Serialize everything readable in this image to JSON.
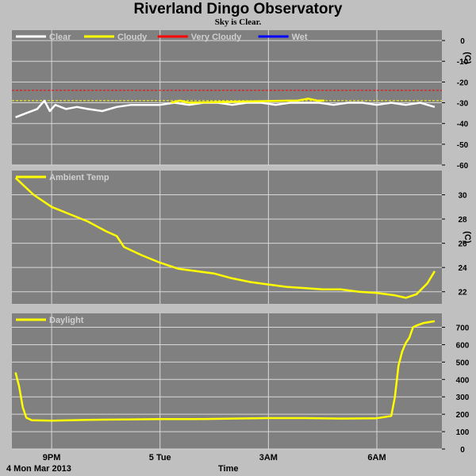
{
  "header": {
    "title": "Riverland Dingo Observatory",
    "subtitle": "Sky is Clear."
  },
  "footer": {
    "date_label": "4 Mon Mar 2013",
    "axis_label": "Time"
  },
  "colors": {
    "panel_bg": "#808080",
    "page_bg": "#c0c0c0",
    "grid": "#d8d8d8",
    "clear": "#ffffff",
    "cloudy": "#ffff00",
    "very_cloudy": "#ff0000",
    "wet": "#0000ff"
  },
  "chart_data": [
    {
      "type": "line",
      "ylabel": "(C)",
      "ylim": [
        -60,
        5
      ],
      "yticks": [
        0,
        -10,
        -20,
        -30,
        -40,
        -50,
        -60
      ],
      "xlim": [
        19.9,
        31.8
      ],
      "x_ticks": [
        {
          "x": 21,
          "label": "9PM"
        },
        {
          "x": 24,
          "label": "5 Tue"
        },
        {
          "x": 27,
          "label": "3AM"
        },
        {
          "x": 30,
          "label": "6AM"
        }
      ],
      "legend": [
        "Clear",
        "Cloudy",
        "Very Cloudy",
        "Wet"
      ],
      "thresholds": [
        {
          "name": "Very Cloudy",
          "value": -24
        },
        {
          "name": "Cloudy",
          "value": -29
        }
      ],
      "series": [
        {
          "name": "Clear",
          "x": [
            20.0,
            20.3,
            20.6,
            20.8,
            20.95,
            21.1,
            21.4,
            21.7,
            22.0,
            22.4,
            22.8,
            23.2,
            23.6,
            24.0,
            24.4,
            24.8,
            25.2,
            25.6,
            26.0,
            26.4,
            26.8,
            27.2,
            27.6,
            28.0,
            28.4,
            28.8,
            29.2,
            29.6,
            30.0,
            30.4,
            30.8,
            31.2,
            31.6
          ],
          "y": [
            -37,
            -35,
            -33,
            -29,
            -34,
            -31,
            -33,
            -32,
            -33,
            -34,
            -32,
            -31,
            -31,
            -31,
            -30,
            -31,
            -30,
            -30,
            -31,
            -30,
            -30,
            -31,
            -30,
            -30,
            -30,
            -31,
            -30,
            -30,
            -31,
            -30,
            -31,
            -30,
            -32
          ]
        },
        {
          "name": "Cloudy",
          "x": [
            24.3,
            24.55,
            24.8,
            27.55,
            27.8,
            28.1,
            28.35,
            28.55
          ],
          "y": [
            -30,
            -29,
            -30,
            -29,
            -29,
            -28,
            -29,
            -29
          ]
        }
      ]
    },
    {
      "type": "line",
      "ylabel": "(C)",
      "ylim": [
        21,
        32
      ],
      "yticks": [
        22,
        24,
        26,
        28,
        30
      ],
      "xlim": [
        19.9,
        31.8
      ],
      "x_ticks": [
        {
          "x": 21,
          "label": "9PM"
        },
        {
          "x": 24,
          "label": "5 Tue"
        },
        {
          "x": 27,
          "label": "3AM"
        },
        {
          "x": 30,
          "label": "6AM"
        }
      ],
      "legend": [
        "Ambient Temp"
      ],
      "series": [
        {
          "name": "Ambient Temp",
          "x": [
            20.0,
            20.5,
            21.0,
            21.5,
            22.0,
            22.5,
            22.8,
            23.0,
            23.5,
            24.0,
            24.5,
            25.0,
            25.5,
            26.0,
            26.5,
            27.0,
            27.5,
            28.0,
            28.5,
            29.0,
            29.5,
            30.0,
            30.5,
            30.8,
            31.1,
            31.4,
            31.6
          ],
          "y": [
            31.4,
            30.0,
            29.0,
            28.4,
            27.8,
            27.0,
            26.6,
            25.7,
            25.0,
            24.4,
            23.9,
            23.7,
            23.5,
            23.1,
            22.8,
            22.6,
            22.4,
            22.3,
            22.2,
            22.2,
            22.0,
            21.9,
            21.7,
            21.5,
            21.8,
            22.7,
            23.7
          ]
        }
      ]
    },
    {
      "type": "line",
      "ylabel": "",
      "ylim": [
        0,
        780
      ],
      "yticks": [
        0,
        100,
        200,
        300,
        400,
        500,
        600,
        700
      ],
      "xlim": [
        19.9,
        31.8
      ],
      "x_ticks": [
        {
          "x": 21,
          "label": "9PM"
        },
        {
          "x": 24,
          "label": "5 Tue"
        },
        {
          "x": 27,
          "label": "3AM"
        },
        {
          "x": 30,
          "label": "6AM"
        }
      ],
      "legend": [
        "Daylight"
      ],
      "series": [
        {
          "name": "Daylight",
          "x": [
            20.0,
            20.1,
            20.2,
            20.3,
            20.45,
            21.0,
            22.0,
            23.0,
            24.0,
            25.0,
            26.0,
            27.0,
            28.0,
            29.0,
            30.0,
            30.4,
            30.5,
            30.6,
            30.7,
            30.8,
            30.9,
            31.0,
            31.1,
            31.3,
            31.6
          ],
          "y": [
            440,
            360,
            240,
            180,
            165,
            163,
            168,
            170,
            172,
            172,
            175,
            178,
            178,
            175,
            177,
            190,
            300,
            480,
            560,
            610,
            640,
            700,
            710,
            725,
            735
          ]
        }
      ]
    }
  ]
}
